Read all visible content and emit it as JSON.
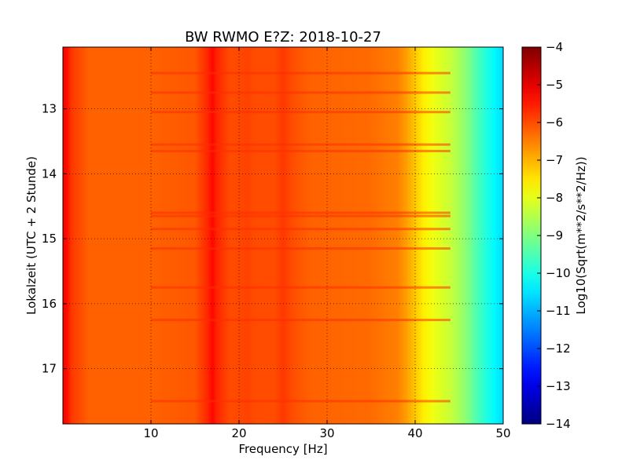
{
  "chart_data": {
    "type": "heatmap",
    "title": "BW RWMO E?Z: 2018-10-27",
    "xlabel": "Frequency [Hz]",
    "ylabel": "Lokalzeit (UTC + 2 Stunde)",
    "xlim": [
      0,
      50
    ],
    "ylim": [
      17.85,
      12.05
    ],
    "x_ticks": [
      10,
      20,
      30,
      40,
      50
    ],
    "y_ticks": [
      13,
      14,
      15,
      16,
      17
    ],
    "grid": true,
    "colormap": "jet",
    "colorbar": {
      "label": "Log10(Sqrt(m**2/s**2/Hz))",
      "range": [
        -14,
        -4
      ],
      "ticks": [
        -4,
        -5,
        -6,
        -7,
        -8,
        -9,
        -10,
        -11,
        -12,
        -13,
        -14
      ]
    },
    "spectrum_profile": {
      "frequency_hz": [
        0,
        0.5,
        1,
        3,
        10,
        15,
        16.5,
        17,
        17.5,
        19,
        21,
        22,
        24,
        25,
        26,
        28,
        35,
        38,
        39,
        40,
        41,
        42,
        43,
        44,
        45,
        46,
        47,
        48,
        49,
        50
      ],
      "level": [
        -5.2,
        -5.4,
        -5.8,
        -6.2,
        -6.2,
        -6.1,
        -5.6,
        -5.3,
        -5.6,
        -6.0,
        -5.9,
        -6.0,
        -6.0,
        -5.8,
        -6.0,
        -6.2,
        -6.3,
        -6.5,
        -6.8,
        -7.2,
        -7.6,
        -7.9,
        -8.1,
        -8.3,
        -8.6,
        -9.0,
        -9.5,
        -9.9,
        -10.3,
        -10.6
      ]
    },
    "horizontal_bands_hour": [
      12.45,
      12.75,
      13.05,
      13.55,
      13.65,
      14.6,
      14.65,
      14.85,
      15.15,
      15.75,
      16.25,
      17.5
    ]
  }
}
